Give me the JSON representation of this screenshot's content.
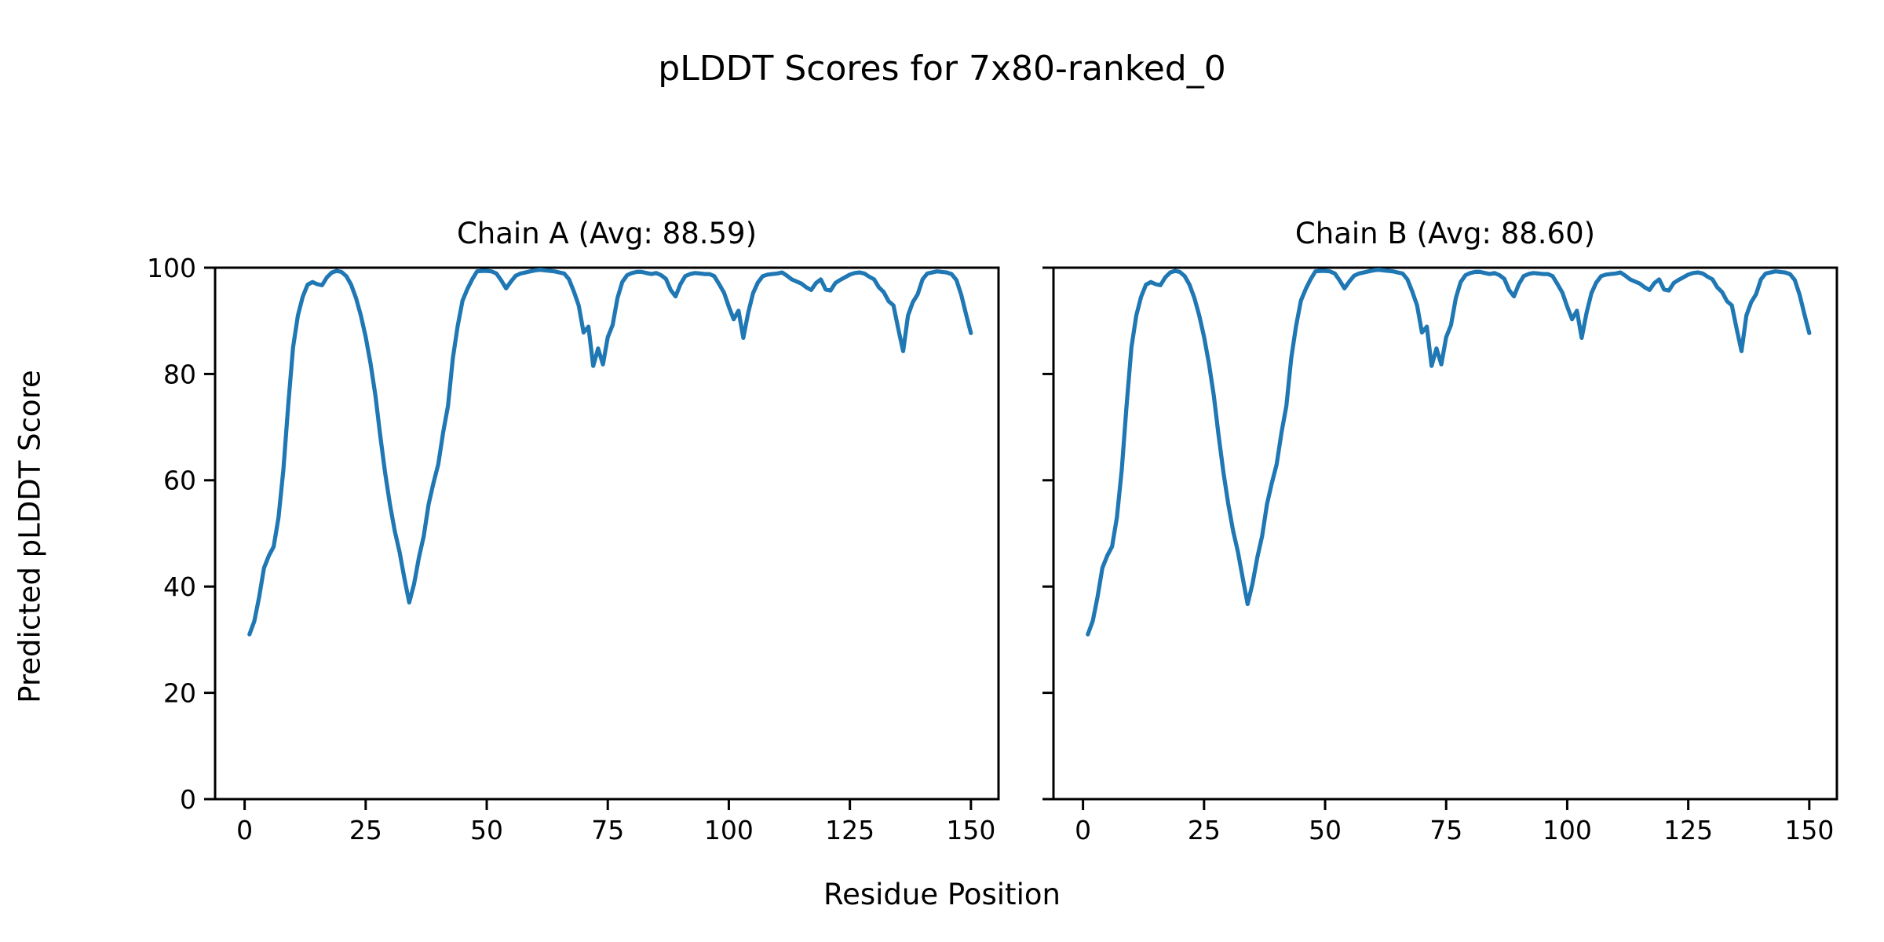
{
  "figure": {
    "title": "pLDDT Scores for 7x80-ranked_0",
    "xlabel": "Residue Position",
    "ylabel": "Predicted pLDDT Score",
    "background_color": "#ffffff",
    "line_color": "#1f77b4",
    "text_color": "#000000"
  },
  "chart_data": [
    {
      "type": "line",
      "title": "Chain A (Avg: 88.59)",
      "avg_plddt": 88.59,
      "chain": "A",
      "xlabel": "Residue Position",
      "ylabel": "Predicted pLDDT Score",
      "xlim": [
        -6.1,
        155.7
      ],
      "ylim": [
        0,
        100
      ],
      "x_ticks": [
        0,
        25,
        50,
        75,
        100,
        125,
        150
      ],
      "y_ticks": [
        0,
        20,
        40,
        60,
        80,
        100
      ],
      "y_tick_labels_visible": true,
      "grid": false,
      "legend": "none",
      "series": [
        {
          "name": "pLDDT",
          "color": "#1f77b4",
          "x_start": 1,
          "x_step": 1,
          "values": [
            31.0,
            33.5,
            38.0,
            43.5,
            45.8,
            47.5,
            53.0,
            62.0,
            74.0,
            85.0,
            91.0,
            94.5,
            96.8,
            97.3,
            96.9,
            96.7,
            98.2,
            99.1,
            99.4,
            99.2,
            98.4,
            96.8,
            94.3,
            91.0,
            87.0,
            82.0,
            76.0,
            68.5,
            61.5,
            55.5,
            50.5,
            46.5,
            41.5,
            37.0,
            40.5,
            45.5,
            49.5,
            55.5,
            59.5,
            63.0,
            69.0,
            74.0,
            83.0,
            89.0,
            93.8,
            96.0,
            97.8,
            99.3,
            99.4,
            99.4,
            99.3,
            98.9,
            97.6,
            96.1,
            97.4,
            98.5,
            98.9,
            99.1,
            99.3,
            99.5,
            99.6,
            99.5,
            99.4,
            99.3,
            99.1,
            98.9,
            97.8,
            95.5,
            92.9,
            87.8,
            88.9,
            81.5,
            84.8,
            81.8,
            86.9,
            89.2,
            94.3,
            97.3,
            98.6,
            99.0,
            99.2,
            99.2,
            99.0,
            98.8,
            99.0,
            98.6,
            97.9,
            95.8,
            94.6,
            96.9,
            98.4,
            98.8,
            99.0,
            98.9,
            98.8,
            98.8,
            98.4,
            96.9,
            95.3,
            92.7,
            90.3,
            91.9,
            86.8,
            91.5,
            95.2,
            97.2,
            98.4,
            98.7,
            98.8,
            98.9,
            99.1,
            98.5,
            97.8,
            97.4,
            97.0,
            96.3,
            95.8,
            97.1,
            97.8,
            95.9,
            95.7,
            97.1,
            97.7,
            98.2,
            98.7,
            99.0,
            99.1,
            98.9,
            98.3,
            97.8,
            96.3,
            95.4,
            93.7,
            92.9,
            88.5,
            84.3,
            91.0,
            93.5,
            95.0,
            97.8,
            98.9,
            99.1,
            99.3,
            99.2,
            99.1,
            98.8,
            97.7,
            94.9,
            91.2,
            87.7
          ]
        }
      ]
    },
    {
      "type": "line",
      "title": "Chain B (Avg: 88.60)",
      "avg_plddt": 88.6,
      "chain": "B",
      "xlabel": "Residue Position",
      "ylabel": "Predicted pLDDT Score",
      "xlim": [
        -6.1,
        155.7
      ],
      "ylim": [
        0,
        100
      ],
      "x_ticks": [
        0,
        25,
        50,
        75,
        100,
        125,
        150
      ],
      "y_ticks": [
        0,
        20,
        40,
        60,
        80,
        100
      ],
      "y_tick_labels_visible": false,
      "grid": false,
      "legend": "none",
      "series": [
        {
          "name": "pLDDT",
          "color": "#1f77b4",
          "x_start": 1,
          "x_step": 1,
          "values": [
            31.0,
            33.5,
            38.0,
            43.5,
            45.8,
            47.5,
            53.0,
            62.0,
            74.0,
            85.0,
            91.0,
            94.5,
            96.8,
            97.3,
            96.9,
            96.7,
            98.2,
            99.1,
            99.4,
            99.2,
            98.4,
            96.8,
            94.3,
            91.0,
            87.0,
            82.0,
            76.0,
            68.5,
            61.5,
            55.5,
            50.5,
            46.5,
            41.5,
            36.7,
            40.5,
            45.5,
            49.5,
            55.5,
            59.5,
            63.0,
            69.0,
            74.0,
            83.0,
            89.0,
            93.8,
            96.0,
            97.8,
            99.3,
            99.4,
            99.4,
            99.3,
            98.9,
            97.6,
            96.1,
            97.4,
            98.5,
            98.9,
            99.1,
            99.3,
            99.5,
            99.6,
            99.5,
            99.4,
            99.3,
            99.1,
            98.9,
            97.8,
            95.5,
            92.9,
            87.8,
            88.9,
            81.5,
            84.8,
            81.8,
            86.9,
            89.2,
            94.3,
            97.3,
            98.6,
            99.0,
            99.2,
            99.2,
            99.0,
            98.8,
            99.0,
            98.6,
            97.9,
            95.8,
            94.6,
            96.9,
            98.4,
            98.8,
            99.0,
            98.9,
            98.8,
            98.8,
            98.4,
            96.9,
            95.3,
            92.7,
            90.3,
            91.9,
            86.8,
            91.5,
            95.2,
            97.2,
            98.4,
            98.7,
            98.8,
            98.9,
            99.1,
            98.5,
            97.8,
            97.4,
            97.0,
            96.3,
            95.8,
            97.1,
            97.8,
            95.9,
            95.7,
            97.1,
            97.7,
            98.2,
            98.7,
            99.0,
            99.1,
            98.9,
            98.3,
            97.8,
            96.3,
            95.4,
            93.7,
            92.9,
            88.5,
            84.3,
            91.0,
            93.5,
            95.0,
            97.8,
            98.9,
            99.1,
            99.3,
            99.2,
            99.1,
            98.8,
            97.7,
            94.9,
            91.2,
            87.7
          ]
        }
      ]
    }
  ]
}
